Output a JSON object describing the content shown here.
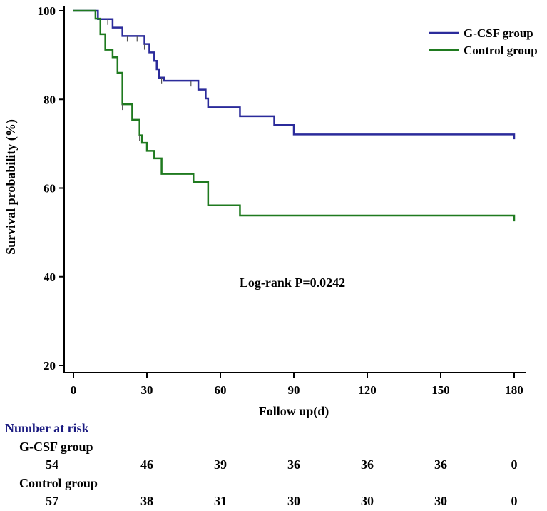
{
  "chart_data": {
    "type": "line",
    "title": "",
    "xlabel": "Follow up(d)",
    "ylabel": "Survival probability (%)",
    "xlim": [
      0,
      180
    ],
    "ylim": [
      20,
      100
    ],
    "x_ticks": [
      "0",
      "30",
      "60",
      "90",
      "120",
      "150",
      "180"
    ],
    "y_ticks": [
      "20",
      "40",
      "60",
      "80",
      "100"
    ],
    "annotation": "Log-rank P=0.0242",
    "legend_position": "top-right",
    "series": [
      {
        "name": "G-CSF group",
        "color": "#2b2b9b",
        "steps": [
          [
            0,
            100
          ],
          [
            10,
            98.1
          ],
          [
            16,
            96.2
          ],
          [
            20,
            94.3
          ],
          [
            29,
            92.5
          ],
          [
            31,
            90.6
          ],
          [
            33,
            88.7
          ],
          [
            34,
            86.8
          ],
          [
            35,
            84.9
          ],
          [
            37,
            84.2
          ],
          [
            51,
            82.2
          ],
          [
            54,
            80.2
          ],
          [
            55,
            78.2
          ],
          [
            68,
            76.2
          ],
          [
            82,
            74.2
          ],
          [
            90,
            72.1
          ],
          [
            180,
            71
          ]
        ],
        "censor_ticks": [
          14,
          22,
          26,
          29,
          36,
          48
        ]
      },
      {
        "name": "Control group",
        "color": "#1f7a1f",
        "steps": [
          [
            0,
            100
          ],
          [
            9,
            98.2
          ],
          [
            11,
            94.7
          ],
          [
            13,
            91.2
          ],
          [
            16,
            89.5
          ],
          [
            18,
            86
          ],
          [
            20,
            78.9
          ],
          [
            24,
            75.4
          ],
          [
            27,
            71.9
          ],
          [
            28,
            70.2
          ],
          [
            30,
            68.4
          ],
          [
            33,
            66.7
          ],
          [
            36,
            63.2
          ],
          [
            49,
            61.4
          ],
          [
            55,
            56.1
          ],
          [
            68,
            53.8
          ],
          [
            180,
            52.5
          ]
        ],
        "censor_ticks": [
          20,
          27
        ]
      }
    ]
  },
  "risk_table": {
    "title": "Number at risk",
    "groups": [
      {
        "name": "G-CSF group",
        "values": [
          "54",
          "46",
          "39",
          "36",
          "36",
          "36",
          "0"
        ]
      },
      {
        "name": "Control group",
        "values": [
          "57",
          "38",
          "31",
          "30",
          "30",
          "30",
          "0"
        ]
      }
    ]
  }
}
